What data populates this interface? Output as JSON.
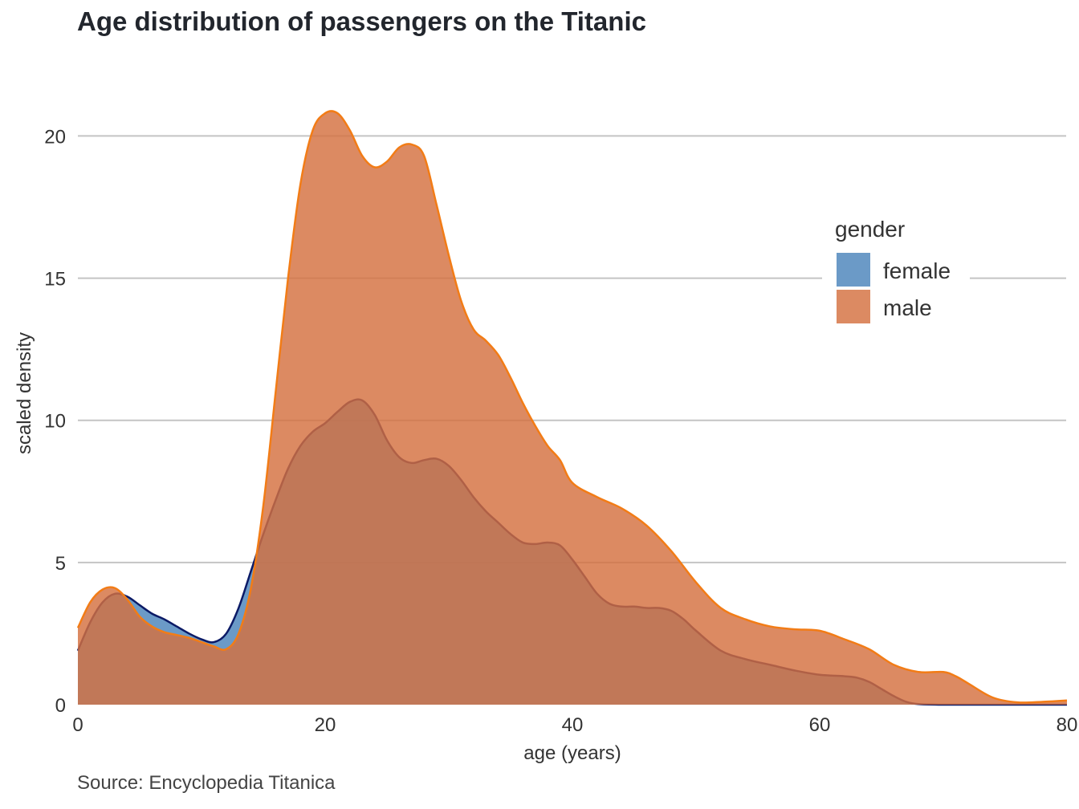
{
  "chart_data": {
    "type": "area",
    "title": "Age distribution of passengers on the Titanic",
    "xlabel": "age (years)",
    "ylabel": "scaled density",
    "caption": "Source: Encyclopedia Titanica",
    "xlim": [
      0,
      80
    ],
    "ylim": [
      0,
      21
    ],
    "x_ticks": [
      0,
      20,
      40,
      60,
      80
    ],
    "y_ticks": [
      0,
      5,
      10,
      15,
      20
    ],
    "grid": "horizontal",
    "legend": {
      "title": "gender",
      "position": "top-right",
      "entries": [
        "female",
        "male"
      ]
    },
    "series": [
      {
        "name": "female",
        "fill_color": "#4b84bb",
        "line_color": "#0b1a66",
        "x": [
          0,
          1,
          2,
          3,
          4,
          5,
          6,
          7,
          8,
          9,
          10,
          11,
          12,
          13,
          14,
          15,
          16,
          17,
          18,
          19,
          20,
          21,
          22,
          23,
          24,
          25,
          26,
          27,
          28,
          29,
          30,
          31,
          32,
          33,
          34,
          35,
          36,
          37,
          38,
          39,
          40,
          41,
          42,
          43,
          44,
          45,
          46,
          47,
          48,
          49,
          50,
          52,
          54,
          56,
          58,
          60,
          62,
          63,
          64,
          65,
          66,
          67,
          68,
          70,
          72,
          74,
          76,
          78,
          80
        ],
        "y": [
          1.9,
          2.9,
          3.6,
          3.9,
          3.8,
          3.5,
          3.2,
          3.0,
          2.75,
          2.5,
          2.3,
          2.2,
          2.5,
          3.4,
          4.7,
          6.0,
          7.2,
          8.3,
          9.1,
          9.6,
          9.9,
          10.3,
          10.65,
          10.7,
          10.2,
          9.3,
          8.7,
          8.5,
          8.6,
          8.65,
          8.4,
          7.9,
          7.3,
          6.8,
          6.4,
          6.0,
          5.7,
          5.65,
          5.7,
          5.6,
          5.1,
          4.5,
          3.9,
          3.55,
          3.45,
          3.45,
          3.4,
          3.4,
          3.3,
          3.0,
          2.6,
          1.9,
          1.6,
          1.4,
          1.2,
          1.05,
          1.0,
          0.95,
          0.8,
          0.55,
          0.3,
          0.1,
          0.02,
          0.0,
          0.0,
          0.0,
          0.0,
          0.0,
          0.0
        ]
      },
      {
        "name": "male",
        "fill_color": "#d4703f",
        "line_color": "#f27c16",
        "x": [
          0,
          1,
          2,
          3,
          4,
          5,
          6,
          7,
          8,
          9,
          10,
          11,
          12,
          13,
          14,
          15,
          16,
          17,
          18,
          19,
          20,
          21,
          22,
          23,
          24,
          25,
          26,
          27,
          28,
          29,
          30,
          31,
          32,
          33,
          34,
          35,
          36,
          37,
          38,
          39,
          40,
          42,
          44,
          46,
          48,
          50,
          52,
          54,
          56,
          58,
          60,
          62,
          64,
          66,
          68,
          70,
          71,
          72,
          74,
          76,
          78,
          80
        ],
        "y": [
          2.7,
          3.6,
          4.05,
          4.1,
          3.7,
          3.1,
          2.75,
          2.55,
          2.45,
          2.35,
          2.2,
          2.05,
          1.95,
          2.5,
          4.1,
          7.0,
          11.0,
          15.0,
          18.3,
          20.2,
          20.8,
          20.8,
          20.2,
          19.3,
          18.9,
          19.1,
          19.6,
          19.7,
          19.3,
          17.6,
          15.8,
          14.2,
          13.2,
          12.8,
          12.3,
          11.5,
          10.6,
          9.8,
          9.1,
          8.6,
          7.8,
          7.3,
          6.9,
          6.3,
          5.4,
          4.3,
          3.4,
          3.0,
          2.75,
          2.65,
          2.6,
          2.3,
          1.95,
          1.4,
          1.15,
          1.15,
          1.0,
          0.75,
          0.25,
          0.08,
          0.1,
          0.15
        ]
      }
    ]
  }
}
